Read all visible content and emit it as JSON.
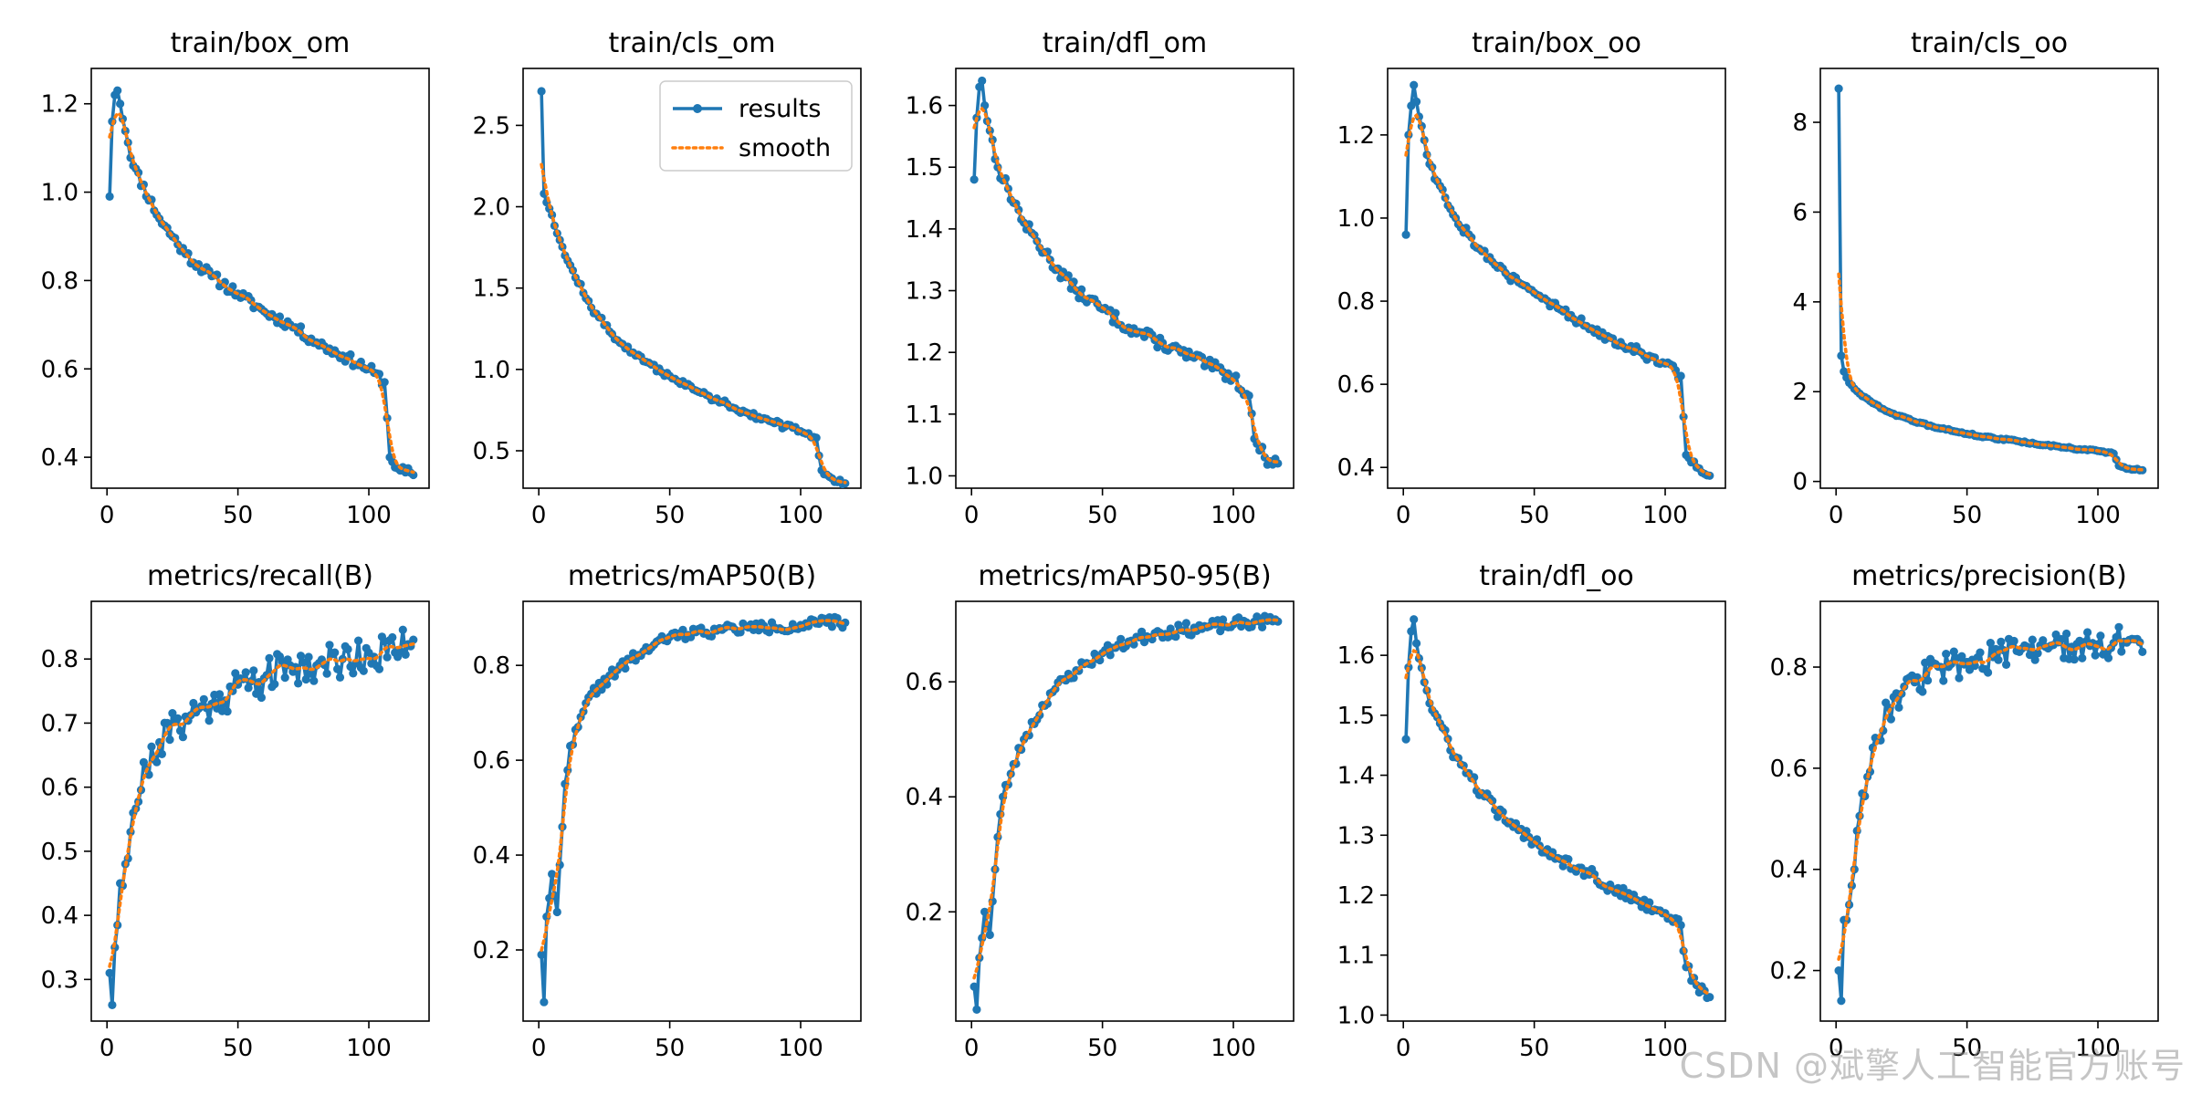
{
  "colors": {
    "results": "#1f77b4",
    "smooth": "#ff7f0e",
    "axes": "#000000",
    "background": "#ffffff"
  },
  "legend": {
    "results_label": "results",
    "smooth_label": "smooth",
    "placement": "upper-right",
    "panel_index": 1
  },
  "watermark": "CSDN @斌擎人工智能官方账号",
  "chart_data": [
    {
      "type": "line",
      "title": "train/box_om",
      "xlim": [
        -6,
        123
      ],
      "ylim": [
        0.33,
        1.28
      ],
      "xticks": [
        0,
        50,
        100
      ],
      "xtick_labels": [
        "0",
        "50",
        "100"
      ],
      "yticks": [
        0.4,
        0.6,
        0.8,
        1.0,
        1.2
      ],
      "ytick_labels": [
        "0.4",
        "0.6",
        "0.8",
        "1.0",
        "1.2"
      ],
      "gen": {
        "kind": "loss",
        "x1": 1,
        "x2": 117,
        "anchors": [
          [
            1,
            0.99
          ],
          [
            2,
            1.16
          ],
          [
            3,
            1.22
          ],
          [
            4,
            1.23
          ],
          [
            5,
            1.2
          ],
          [
            10,
            1.06
          ],
          [
            20,
            0.94
          ],
          [
            30,
            0.86
          ],
          [
            40,
            0.81
          ],
          [
            50,
            0.77
          ],
          [
            60,
            0.73
          ],
          [
            70,
            0.7
          ],
          [
            80,
            0.66
          ],
          [
            90,
            0.63
          ],
          [
            100,
            0.6
          ],
          [
            106,
            0.57
          ],
          [
            108,
            0.4
          ],
          [
            112,
            0.37
          ],
          [
            117,
            0.36
          ]
        ],
        "noise": 0.012,
        "seed": 11
      }
    },
    {
      "type": "line",
      "title": "train/cls_om",
      "xlim": [
        -6,
        123
      ],
      "ylim": [
        0.27,
        2.85
      ],
      "xticks": [
        0,
        50,
        100
      ],
      "xtick_labels": [
        "0",
        "50",
        "100"
      ],
      "yticks": [
        0.5,
        1.0,
        1.5,
        2.0,
        2.5
      ],
      "ytick_labels": [
        "0.5",
        "1.0",
        "1.5",
        "2.0",
        "2.5"
      ],
      "gen": {
        "kind": "loss",
        "x1": 1,
        "x2": 117,
        "anchors": [
          [
            1,
            2.71
          ],
          [
            2,
            2.08
          ],
          [
            5,
            1.95
          ],
          [
            10,
            1.7
          ],
          [
            20,
            1.38
          ],
          [
            30,
            1.18
          ],
          [
            40,
            1.05
          ],
          [
            50,
            0.96
          ],
          [
            60,
            0.87
          ],
          [
            70,
            0.8
          ],
          [
            80,
            0.73
          ],
          [
            90,
            0.67
          ],
          [
            100,
            0.62
          ],
          [
            106,
            0.58
          ],
          [
            108,
            0.38
          ],
          [
            112,
            0.33
          ],
          [
            117,
            0.3
          ]
        ],
        "noise": 0.018,
        "seed": 12
      }
    },
    {
      "type": "line",
      "title": "train/dfl_om",
      "xlim": [
        -6,
        123
      ],
      "ylim": [
        0.98,
        1.66
      ],
      "xticks": [
        0,
        50,
        100
      ],
      "xtick_labels": [
        "0",
        "50",
        "100"
      ],
      "yticks": [
        1.0,
        1.1,
        1.2,
        1.3,
        1.4,
        1.5,
        1.6
      ],
      "ytick_labels": [
        "1.0",
        "1.1",
        "1.2",
        "1.3",
        "1.4",
        "1.5",
        "1.6"
      ],
      "gen": {
        "kind": "loss",
        "x1": 1,
        "x2": 117,
        "anchors": [
          [
            1,
            1.48
          ],
          [
            2,
            1.58
          ],
          [
            3,
            1.63
          ],
          [
            4,
            1.64
          ],
          [
            5,
            1.6
          ],
          [
            10,
            1.5
          ],
          [
            20,
            1.41
          ],
          [
            30,
            1.35
          ],
          [
            40,
            1.3
          ],
          [
            50,
            1.27
          ],
          [
            60,
            1.24
          ],
          [
            70,
            1.22
          ],
          [
            80,
            1.2
          ],
          [
            90,
            1.18
          ],
          [
            100,
            1.16
          ],
          [
            106,
            1.13
          ],
          [
            108,
            1.06
          ],
          [
            112,
            1.03
          ],
          [
            117,
            1.02
          ]
        ],
        "noise": 0.01,
        "seed": 13
      }
    },
    {
      "type": "line",
      "title": "train/box_oo",
      "xlim": [
        -6,
        123
      ],
      "ylim": [
        0.35,
        1.36
      ],
      "xticks": [
        0,
        50,
        100
      ],
      "xtick_labels": [
        "0",
        "50",
        "100"
      ],
      "yticks": [
        0.4,
        0.6,
        0.8,
        1.0,
        1.2
      ],
      "ytick_labels": [
        "0.4",
        "0.6",
        "0.8",
        "1.0",
        "1.2"
      ],
      "gen": {
        "kind": "loss",
        "x1": 1,
        "x2": 117,
        "anchors": [
          [
            1,
            0.96
          ],
          [
            2,
            1.2
          ],
          [
            3,
            1.27
          ],
          [
            4,
            1.32
          ],
          [
            5,
            1.28
          ],
          [
            10,
            1.13
          ],
          [
            20,
            1.0
          ],
          [
            30,
            0.92
          ],
          [
            40,
            0.86
          ],
          [
            50,
            0.82
          ],
          [
            60,
            0.78
          ],
          [
            70,
            0.74
          ],
          [
            80,
            0.71
          ],
          [
            90,
            0.68
          ],
          [
            100,
            0.65
          ],
          [
            106,
            0.62
          ],
          [
            108,
            0.43
          ],
          [
            112,
            0.4
          ],
          [
            117,
            0.38
          ]
        ],
        "noise": 0.012,
        "seed": 14
      }
    },
    {
      "type": "line",
      "title": "train/cls_oo",
      "xlim": [
        -6,
        123
      ],
      "ylim": [
        -0.15,
        9.2
      ],
      "xticks": [
        0,
        50,
        100
      ],
      "xtick_labels": [
        "0",
        "50",
        "100"
      ],
      "yticks": [
        0,
        2,
        4,
        6,
        8
      ],
      "ytick_labels": [
        "0",
        "2",
        "4",
        "6",
        "8"
      ],
      "gen": {
        "kind": "loss",
        "x1": 1,
        "x2": 117,
        "anchors": [
          [
            1,
            8.75
          ],
          [
            2,
            2.8
          ],
          [
            3,
            2.45
          ],
          [
            5,
            2.2
          ],
          [
            10,
            1.9
          ],
          [
            20,
            1.55
          ],
          [
            30,
            1.33
          ],
          [
            40,
            1.18
          ],
          [
            50,
            1.06
          ],
          [
            60,
            0.97
          ],
          [
            70,
            0.89
          ],
          [
            80,
            0.81
          ],
          [
            90,
            0.74
          ],
          [
            100,
            0.68
          ],
          [
            106,
            0.62
          ],
          [
            108,
            0.35
          ],
          [
            112,
            0.28
          ],
          [
            117,
            0.25
          ]
        ],
        "noise": 0.02,
        "seed": 15
      }
    },
    {
      "type": "line",
      "title": "metrics/recall(B)",
      "xlim": [
        -6,
        123
      ],
      "ylim": [
        0.235,
        0.89
      ],
      "xticks": [
        0,
        50,
        100
      ],
      "xtick_labels": [
        "0",
        "50",
        "100"
      ],
      "yticks": [
        0.3,
        0.4,
        0.5,
        0.6,
        0.7,
        0.8
      ],
      "ytick_labels": [
        "0.3",
        "0.4",
        "0.5",
        "0.6",
        "0.7",
        "0.8"
      ],
      "gen": {
        "kind": "metric",
        "x1": 1,
        "x2": 117,
        "anchors": [
          [
            1,
            0.31
          ],
          [
            2,
            0.26
          ],
          [
            3,
            0.35
          ],
          [
            5,
            0.45
          ],
          [
            7,
            0.48
          ],
          [
            10,
            0.56
          ],
          [
            15,
            0.63
          ],
          [
            20,
            0.67
          ],
          [
            30,
            0.71
          ],
          [
            40,
            0.73
          ],
          [
            50,
            0.76
          ],
          [
            60,
            0.77
          ],
          [
            70,
            0.79
          ],
          [
            80,
            0.79
          ],
          [
            90,
            0.8
          ],
          [
            100,
            0.81
          ],
          [
            110,
            0.81
          ],
          [
            117,
            0.83
          ]
        ],
        "noise": 0.03,
        "seed": 21
      }
    },
    {
      "type": "line",
      "title": "metrics/mAP50(B)",
      "xlim": [
        -6,
        123
      ],
      "ylim": [
        0.05,
        0.935
      ],
      "xticks": [
        0,
        50,
        100
      ],
      "xtick_labels": [
        "0",
        "50",
        "100"
      ],
      "yticks": [
        0.2,
        0.4,
        0.6,
        0.8
      ],
      "ytick_labels": [
        "0.2",
        "0.4",
        "0.6",
        "0.8"
      ],
      "gen": {
        "kind": "metric",
        "x1": 1,
        "x2": 117,
        "anchors": [
          [
            1,
            0.19
          ],
          [
            2,
            0.09
          ],
          [
            3,
            0.27
          ],
          [
            5,
            0.36
          ],
          [
            7,
            0.28
          ],
          [
            10,
            0.55
          ],
          [
            12,
            0.63
          ],
          [
            15,
            0.67
          ],
          [
            20,
            0.74
          ],
          [
            30,
            0.79
          ],
          [
            40,
            0.83
          ],
          [
            50,
            0.86
          ],
          [
            60,
            0.87
          ],
          [
            70,
            0.875
          ],
          [
            80,
            0.88
          ],
          [
            90,
            0.88
          ],
          [
            100,
            0.885
          ],
          [
            110,
            0.89
          ],
          [
            117,
            0.89
          ]
        ],
        "noise": 0.012,
        "seed": 22
      }
    },
    {
      "type": "line",
      "title": "metrics/mAP50-95(B)",
      "xlim": [
        -6,
        123
      ],
      "ylim": [
        0.01,
        0.74
      ],
      "xticks": [
        0,
        50,
        100
      ],
      "xtick_labels": [
        "0",
        "50",
        "100"
      ],
      "yticks": [
        0.2,
        0.4,
        0.6
      ],
      "ytick_labels": [
        "0.2",
        "0.4",
        "0.6"
      ],
      "gen": {
        "kind": "metric",
        "x1": 1,
        "x2": 117,
        "anchors": [
          [
            1,
            0.07
          ],
          [
            2,
            0.03
          ],
          [
            3,
            0.12
          ],
          [
            5,
            0.2
          ],
          [
            7,
            0.16
          ],
          [
            10,
            0.33
          ],
          [
            12,
            0.4
          ],
          [
            15,
            0.44
          ],
          [
            20,
            0.5
          ],
          [
            30,
            0.58
          ],
          [
            40,
            0.62
          ],
          [
            50,
            0.65
          ],
          [
            60,
            0.67
          ],
          [
            70,
            0.685
          ],
          [
            80,
            0.69
          ],
          [
            90,
            0.695
          ],
          [
            100,
            0.7
          ],
          [
            110,
            0.705
          ],
          [
            117,
            0.705
          ]
        ],
        "noise": 0.011,
        "seed": 23
      }
    },
    {
      "type": "line",
      "title": "train/dfl_oo",
      "xlim": [
        -6,
        123
      ],
      "ylim": [
        0.99,
        1.69
      ],
      "xticks": [
        0,
        50,
        100
      ],
      "xtick_labels": [
        "0",
        "50",
        "100"
      ],
      "yticks": [
        1.0,
        1.1,
        1.2,
        1.3,
        1.4,
        1.5,
        1.6
      ],
      "ytick_labels": [
        "1.0",
        "1.1",
        "1.2",
        "1.3",
        "1.4",
        "1.5",
        "1.6"
      ],
      "gen": {
        "kind": "loss",
        "x1": 1,
        "x2": 117,
        "anchors": [
          [
            1,
            1.46
          ],
          [
            2,
            1.58
          ],
          [
            3,
            1.64
          ],
          [
            4,
            1.66
          ],
          [
            5,
            1.62
          ],
          [
            10,
            1.52
          ],
          [
            20,
            1.43
          ],
          [
            30,
            1.37
          ],
          [
            40,
            1.32
          ],
          [
            50,
            1.29
          ],
          [
            60,
            1.26
          ],
          [
            70,
            1.24
          ],
          [
            80,
            1.21
          ],
          [
            90,
            1.19
          ],
          [
            100,
            1.17
          ],
          [
            106,
            1.15
          ],
          [
            108,
            1.08
          ],
          [
            112,
            1.05
          ],
          [
            117,
            1.03
          ]
        ],
        "noise": 0.01,
        "seed": 24
      }
    },
    {
      "type": "line",
      "title": "metrics/precision(B)",
      "xlim": [
        -6,
        123
      ],
      "ylim": [
        0.1,
        0.93
      ],
      "xticks": [
        0,
        50,
        100
      ],
      "xtick_labels": [
        "0",
        "50",
        "100"
      ],
      "yticks": [
        0.2,
        0.4,
        0.6,
        0.8
      ],
      "ytick_labels": [
        "0.2",
        "0.4",
        "0.6",
        "0.8"
      ],
      "gen": {
        "kind": "metric",
        "x1": 1,
        "x2": 117,
        "anchors": [
          [
            1,
            0.2
          ],
          [
            2,
            0.14
          ],
          [
            3,
            0.3
          ],
          [
            5,
            0.33
          ],
          [
            7,
            0.4
          ],
          [
            10,
            0.55
          ],
          [
            15,
            0.66
          ],
          [
            20,
            0.72
          ],
          [
            30,
            0.77
          ],
          [
            40,
            0.8
          ],
          [
            50,
            0.81
          ],
          [
            60,
            0.82
          ],
          [
            70,
            0.83
          ],
          [
            80,
            0.84
          ],
          [
            90,
            0.84
          ],
          [
            100,
            0.845
          ],
          [
            110,
            0.85
          ],
          [
            117,
            0.83
          ]
        ],
        "noise": 0.03,
        "seed": 25
      }
    }
  ]
}
